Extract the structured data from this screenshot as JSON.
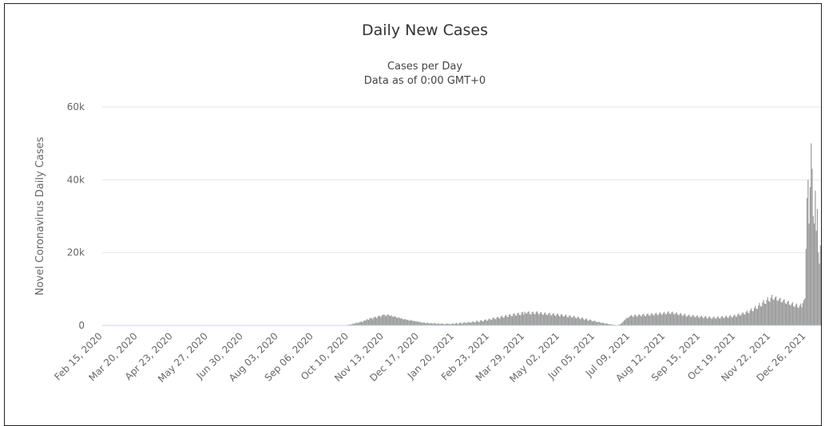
{
  "chart_data": {
    "type": "bar",
    "title": "Daily New Cases",
    "subtitle": [
      "Cases per Day",
      "Data as of 0:00 GMT+0"
    ],
    "y_label": "Novel Coronavirus Daily Cases",
    "color": "#999999",
    "grid": true,
    "ylim": [
      0,
      60000
    ],
    "yticks": [
      0,
      {
        "value": 20000,
        "label": "20k"
      },
      {
        "value": 40000,
        "label": "40k"
      },
      {
        "value": 60000,
        "label": "60k"
      }
    ],
    "categories": [
      "Feb 15, 2020",
      null,
      null,
      null,
      null,
      null,
      null,
      null,
      null,
      null,
      null,
      null,
      null,
      null,
      null,
      null,
      null,
      null,
      null,
      null,
      null,
      null,
      null,
      null,
      null,
      null,
      null,
      null,
      null,
      null,
      null,
      null,
      null,
      null,
      "Mar 20, 2020",
      null,
      null,
      null,
      null,
      null,
      null,
      null,
      null,
      null,
      null,
      null,
      null,
      null,
      null,
      null,
      null,
      null,
      null,
      null,
      null,
      null,
      null,
      null,
      null,
      null,
      null,
      null,
      null,
      null,
      null,
      null,
      null,
      null,
      "Apr 23, 2020",
      null,
      null,
      null,
      null,
      null,
      null,
      null,
      null,
      null,
      null,
      null,
      null,
      null,
      null,
      null,
      null,
      null,
      null,
      null,
      null,
      null,
      null,
      null,
      null,
      null,
      null,
      null,
      null,
      null,
      null,
      null,
      null,
      null,
      "May 27, 2020",
      null,
      null,
      null,
      null,
      null,
      null,
      null,
      null,
      null,
      null,
      null,
      null,
      null,
      null,
      null,
      null,
      null,
      null,
      null,
      null,
      null,
      null,
      null,
      null,
      null,
      null,
      null,
      null,
      null,
      null,
      null,
      null,
      null,
      "Jun 30, 2020",
      null,
      null,
      null,
      null,
      null,
      null,
      null,
      null,
      null,
      null,
      null,
      null,
      null,
      null,
      null,
      null,
      null,
      null,
      null,
      null,
      null,
      null,
      null,
      null,
      null,
      null,
      null,
      null,
      null,
      null,
      null,
      null,
      null,
      "Aug 03, 2020",
      null,
      null,
      null,
      null,
      null,
      null,
      null,
      null,
      null,
      null,
      null,
      null,
      null,
      null,
      null,
      null,
      null,
      null,
      null,
      null,
      null,
      null,
      null,
      null,
      null,
      null,
      null,
      null,
      null,
      null,
      null,
      null,
      null,
      "Sep 06, 2020",
      null,
      null,
      null,
      null,
      null,
      null,
      null,
      null,
      null,
      null,
      null,
      null,
      null,
      null,
      null,
      null,
      null,
      null,
      null,
      null,
      null,
      null,
      null,
      null,
      null,
      null,
      null,
      null,
      null,
      null,
      null,
      null,
      null,
      "Oct 10, 2020",
      null,
      null,
      null,
      null,
      null,
      null,
      null,
      null,
      null,
      null,
      null,
      null,
      null,
      null,
      null,
      null,
      null,
      null,
      null,
      null,
      null,
      null,
      null,
      null,
      null,
      null,
      null,
      null,
      null,
      null,
      null,
      null,
      null,
      "Nov 13, 2020",
      null,
      null,
      null,
      null,
      null,
      null,
      null,
      null,
      null,
      null,
      null,
      null,
      null,
      null,
      null,
      null,
      null,
      null,
      null,
      null,
      null,
      null,
      null,
      null,
      null,
      null,
      null,
      null,
      null,
      null,
      null,
      null,
      null,
      "Dec 17, 2020",
      null,
      null,
      null,
      null,
      null,
      null,
      null,
      null,
      null,
      null,
      null,
      null,
      null,
      null,
      null,
      null,
      null,
      null,
      null,
      null,
      null,
      null,
      null,
      null,
      null,
      null,
      null,
      null,
      null,
      null,
      null,
      null,
      null,
      "Jan 20, 2021",
      null,
      null,
      null,
      null,
      null,
      null,
      null,
      null,
      null,
      null,
      null,
      null,
      null,
      null,
      null,
      null,
      null,
      null,
      null,
      null,
      null,
      null,
      null,
      null,
      null,
      null,
      null,
      null,
      null,
      null,
      null,
      null,
      null,
      "Feb 23, 2021",
      null,
      null,
      null,
      null,
      null,
      null,
      null,
      null,
      null,
      null,
      null,
      null,
      null,
      null,
      null,
      null,
      null,
      null,
      null,
      null,
      null,
      null,
      null,
      null,
      null,
      null,
      null,
      null,
      null,
      null,
      null,
      null,
      null,
      "Mar 29, 2021",
      null,
      null,
      null,
      null,
      null,
      null,
      null,
      null,
      null,
      null,
      null,
      null,
      null,
      null,
      null,
      null,
      null,
      null,
      null,
      null,
      null,
      null,
      null,
      null,
      null,
      null,
      null,
      null,
      null,
      null,
      null,
      null,
      null,
      "May 02, 2021",
      null,
      null,
      null,
      null,
      null,
      null,
      null,
      null,
      null,
      null,
      null,
      null,
      null,
      null,
      null,
      null,
      null,
      null,
      null,
      null,
      null,
      null,
      null,
      null,
      null,
      null,
      null,
      null,
      null,
      null,
      null,
      null,
      null,
      "Jun 05, 2021",
      null,
      null,
      null,
      null,
      null,
      null,
      null,
      null,
      null,
      null,
      null,
      null,
      null,
      null,
      null,
      null,
      null,
      null,
      null,
      null,
      null,
      null,
      null,
      null,
      null,
      null,
      null,
      null,
      null,
      null,
      null,
      null,
      null,
      "Jul 09, 2021",
      null,
      null,
      null,
      null,
      null,
      null,
      null,
      null,
      null,
      null,
      null,
      null,
      null,
      null,
      null,
      null,
      null,
      null,
      null,
      null,
      null,
      null,
      null,
      null,
      null,
      null,
      null,
      null,
      null,
      null,
      null,
      null,
      null,
      "Aug 12, 2021",
      null,
      null,
      null,
      null,
      null,
      null,
      null,
      null,
      null,
      null,
      null,
      null,
      null,
      null,
      null,
      null,
      null,
      null,
      null,
      null,
      null,
      null,
      null,
      null,
      null,
      null,
      null,
      null,
      null,
      null,
      null,
      null,
      null,
      "Sep 15, 2021",
      null,
      null,
      null,
      null,
      null,
      null,
      null,
      null,
      null,
      null,
      null,
      null,
      null,
      null,
      null,
      null,
      null,
      null,
      null,
      null,
      null,
      null,
      null,
      null,
      null,
      null,
      null,
      null,
      null,
      null,
      null,
      null,
      null,
      "Oct 19, 2021",
      null,
      null,
      null,
      null,
      null,
      null,
      null,
      null,
      null,
      null,
      null,
      null,
      null,
      null,
      null,
      null,
      null,
      null,
      null,
      null,
      null,
      null,
      null,
      null,
      null,
      null,
      null,
      null,
      null,
      null,
      null,
      null,
      null,
      "Nov 22, 2021",
      null,
      null,
      null,
      null,
      null,
      null,
      null,
      null,
      null,
      null,
      null,
      null,
      null,
      null,
      null,
      null,
      null,
      null,
      null,
      null,
      null,
      null,
      null,
      null,
      null,
      null,
      null,
      null,
      null,
      null,
      null,
      null,
      null,
      "Dec 26, 2021",
      null,
      null,
      null,
      null,
      null,
      null,
      null,
      null,
      null,
      null,
      null,
      null,
      null,
      null
    ],
    "values": [
      0,
      0,
      0,
      0,
      0,
      0,
      0,
      0,
      0,
      0,
      0,
      0,
      0,
      0,
      0,
      0,
      0,
      0,
      0,
      0,
      0,
      0,
      0,
      0,
      0,
      0,
      0,
      0,
      0,
      0,
      0,
      0,
      0,
      0,
      0,
      0,
      0,
      0,
      0,
      0,
      0,
      0,
      0,
      0,
      0,
      0,
      0,
      0,
      0,
      0,
      0,
      0,
      0,
      0,
      0,
      0,
      0,
      0,
      0,
      0,
      0,
      0,
      0,
      0,
      0,
      0,
      0,
      0,
      0,
      0,
      0,
      0,
      0,
      0,
      0,
      0,
      0,
      0,
      0,
      0,
      0,
      0,
      0,
      0,
      0,
      0,
      0,
      0,
      0,
      0,
      0,
      0,
      0,
      0,
      0,
      0,
      0,
      0,
      0,
      0,
      0,
      0,
      0,
      0,
      0,
      0,
      0,
      0,
      0,
      0,
      0,
      0,
      0,
      0,
      0,
      0,
      0,
      0,
      0,
      0,
      0,
      0,
      0,
      0,
      0,
      0,
      0,
      0,
      0,
      0,
      0,
      0,
      0,
      0,
      0,
      0,
      0,
      0,
      0,
      0,
      0,
      0,
      0,
      0,
      0,
      0,
      0,
      0,
      0,
      0,
      0,
      0,
      0,
      0,
      0,
      0,
      0,
      0,
      0,
      0,
      0,
      0,
      0,
      0,
      0,
      0,
      0,
      0,
      0,
      0,
      0,
      0,
      0,
      0,
      0,
      0,
      0,
      0,
      0,
      0,
      0,
      0,
      0,
      0,
      0,
      0,
      0,
      0,
      0,
      0,
      0,
      0,
      0,
      0,
      0,
      0,
      0,
      0,
      0,
      0,
      0,
      0,
      0,
      0,
      0,
      0,
      0,
      0,
      0,
      0,
      0,
      0,
      0,
      0,
      0,
      0,
      0,
      0,
      0,
      0,
      0,
      0,
      0,
      0,
      0,
      0,
      0,
      0,
      0,
      0,
      0,
      0,
      50,
      80,
      100,
      60,
      120,
      150,
      200,
      300,
      250,
      400,
      500,
      450,
      600,
      700,
      800,
      600,
      900,
      1000,
      1100,
      900,
      1200,
      1400,
      1300,
      1600,
      1800,
      1500,
      1900,
      2100,
      2000,
      1700,
      2200,
      2400,
      2300,
      2000,
      2500,
      2700,
      2600,
      2300,
      2800,
      2900,
      3000,
      2800,
      2500,
      2900,
      3100,
      2700,
      2600,
      2800,
      2500,
      2300,
      2600,
      2400,
      2200,
      2000,
      2300,
      2100,
      1900,
      2000,
      1800,
      1600,
      1800,
      1700,
      1500,
      1600,
      1400,
      1300,
      1500,
      1400,
      1200,
      1300,
      1100,
      1200,
      1000,
      1100,
      900,
      1000,
      800,
      700,
      900,
      800,
      600,
      700,
      800,
      600,
      500,
      700,
      600,
      500,
      600,
      700,
      500,
      400,
      600,
      500,
      400,
      500,
      600,
      400,
      500,
      300,
      500,
      600,
      400,
      500,
      300,
      400,
      600,
      500,
      400,
      600,
      700,
      500,
      400,
      700,
      800,
      600,
      500,
      800,
      900,
      700,
      600,
      900,
      1000,
      800,
      700,
      1000,
      1100,
      900,
      800,
      1200,
      1300,
      1000,
      900,
      1300,
      1500,
      1200,
      1100,
      1500,
      1700,
      1400,
      1300,
      1700,
      1900,
      1600,
      1500,
      2000,
      2200,
      1800,
      1700,
      2200,
      2400,
      2000,
      1900,
      2500,
      2700,
      2200,
      2100,
      2700,
      2900,
      2400,
      2300,
      3000,
      3100,
      2600,
      2500,
      3200,
      3300,
      2800,
      2700,
      3400,
      3500,
      2900,
      2800,
      3600,
      3700,
      3000,
      3800,
      3400,
      3200,
      3700,
      3900,
      3100,
      3000,
      3600,
      3800,
      3200,
      3100,
      3700,
      3900,
      3300,
      3000,
      3500,
      3700,
      3100,
      2900,
      3400,
      3600,
      3000,
      2800,
      3300,
      3500,
      2900,
      2700,
      3200,
      3400,
      2800,
      2600,
      3100,
      3300,
      2700,
      2500,
      3000,
      3100,
      2600,
      2400,
      2800,
      3000,
      2400,
      2200,
      2700,
      2800,
      2300,
      2100,
      2500,
      2600,
      2100,
      1900,
      2300,
      2400,
      1900,
      1700,
      2100,
      2200,
      1700,
      1500,
      1800,
      1900,
      1400,
      1300,
      1600,
      1600,
      1200,
      1100,
      1300,
      1300,
      1000,
      900,
      1000,
      1000,
      800,
      700,
      800,
      700,
      600,
      500,
      600,
      500,
      400,
      300,
      400,
      300,
      200,
      200,
      200,
      100,
      100,
      100,
      200,
      300,
      500,
      700,
      1000,
      1300,
      1600,
      1900,
      2200,
      2000,
      2400,
      2600,
      2900,
      2500,
      2300,
      2800,
      3000,
      2600,
      2400,
      2900,
      3100,
      2700,
      2500,
      3000,
      3200,
      2700,
      2500,
      3100,
      3300,
      2800,
      2600,
      3100,
      3400,
      2900,
      2700,
      3200,
      3500,
      3000,
      2800,
      3300,
      3600,
      3100,
      2900,
      3400,
      3700,
      3200,
      3000,
      3600,
      3900,
      3300,
      3100,
      3600,
      3800,
      3200,
      3000,
      3400,
      3600,
      3000,
      2800,
      3200,
      3400,
      2800,
      2600,
      3000,
      3200,
      2600,
      2400,
      2800,
      3000,
      2500,
      2300,
      2700,
      2900,
      2400,
      2200,
      2600,
      2800,
      2300,
      2100,
      2500,
      2700,
      2200,
      2000,
      2400,
      2600,
      2100,
      1900,
      2300,
      2500,
      2000,
      1800,
      2200,
      2500,
      2000,
      1800,
      2300,
      2500,
      2000,
      1900,
      2400,
      2600,
      2100,
      2000,
      2500,
      2700,
      2200,
      2100,
      2600,
      2800,
      2300,
      2200,
      2700,
      3000,
      2500,
      2400,
      3000,
      3300,
      2800,
      2700,
      3300,
      3600,
      3100,
      3000,
      3700,
      4100,
      3500,
      3400,
      4200,
      4700,
      4000,
      3900,
      4800,
      5400,
      4600,
      4500,
      5500,
      6200,
      5300,
      5200,
      6300,
      7000,
      6000,
      5900,
      7000,
      7800,
      6700,
      6500,
      7600,
      8400,
      7200,
      7000,
      7700,
      8000,
      6900,
      6700,
      7300,
      7600,
      6500,
      6300,
      6900,
      7200,
      6100,
      5900,
      6500,
      6800,
      5700,
      5500,
      6000,
      6400,
      5300,
      5100,
      5700,
      6000,
      5000,
      4800,
      5500,
      6000,
      5000,
      6200,
      7000,
      7500,
      21000,
      35000,
      40000,
      28000,
      38000,
      50000,
      43000,
      30000,
      28000,
      37000,
      26000,
      32000,
      20000,
      17000,
      22000
    ]
  }
}
